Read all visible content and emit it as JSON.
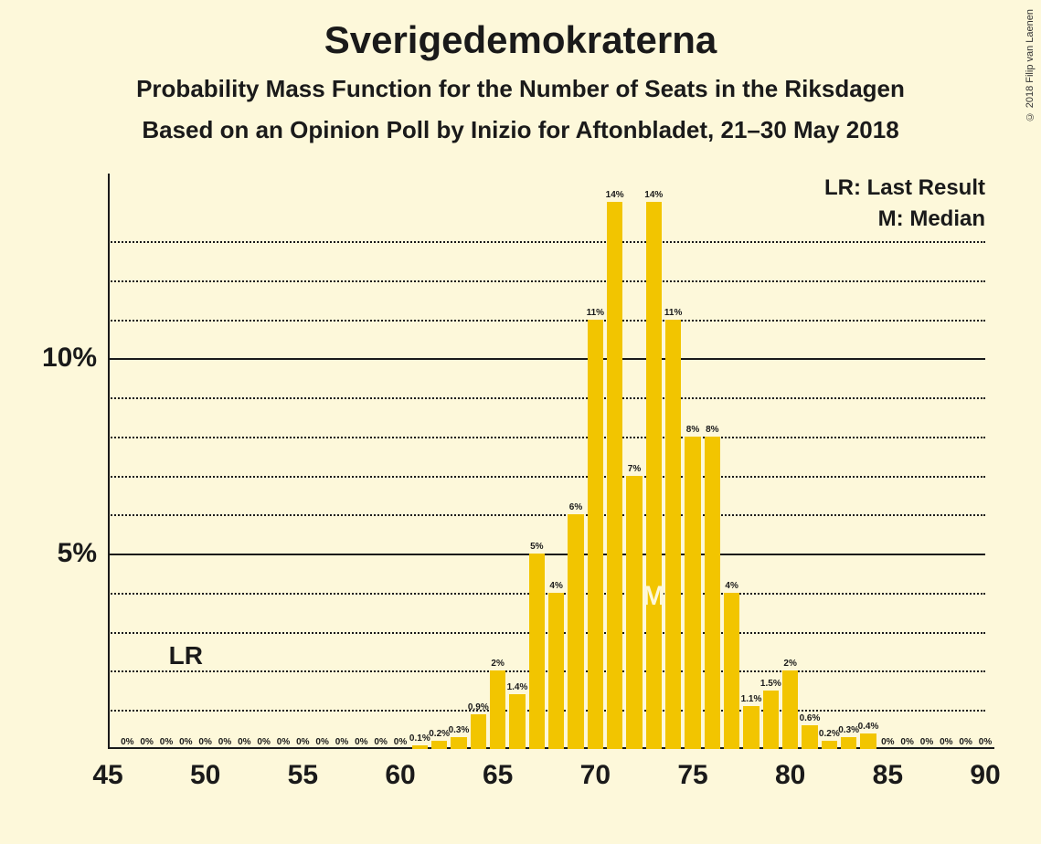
{
  "title": "Sverigedemokraterna",
  "subtitle1": "Probability Mass Function for the Number of Seats in the Riksdagen",
  "subtitle2": "Based on an Opinion Poll by Inizio for Aftonbladet, 21–30 May 2018",
  "copyright": "© 2018 Filip van Laenen",
  "legend": {
    "lr": "LR: Last Result",
    "m": "M: Median"
  },
  "chart": {
    "type": "bar",
    "background_color": "#fdf8da",
    "bar_color": "#f2c500",
    "axis_color": "#1a1a1a",
    "grid_major_color": "#1a1a1a",
    "grid_minor_style": "dotted",
    "title_fontsize": 42,
    "subtitle_fontsize": 26,
    "axis_label_fontsize": 30,
    "bar_label_fontsize": 10,
    "legend_fontsize": 24,
    "xlim": [
      45,
      90
    ],
    "ylim": [
      0,
      14.5
    ],
    "x_ticks_major": [
      45,
      50,
      55,
      60,
      65,
      70,
      75,
      80,
      85,
      90
    ],
    "y_ticks_major": [
      5,
      10
    ],
    "y_ticks_minor": [
      1,
      2,
      3,
      4,
      6,
      7,
      8,
      9,
      11,
      12,
      13
    ],
    "y_tick_labels": {
      "5": "5%",
      "10": "10%"
    },
    "bar_width_ratio": 0.82,
    "lr_position": 49,
    "median_position": 73,
    "m_mark_color": "#fdf8da",
    "data": [
      {
        "x": 46,
        "y": 0,
        "label": "0%"
      },
      {
        "x": 47,
        "y": 0,
        "label": "0%"
      },
      {
        "x": 48,
        "y": 0,
        "label": "0%"
      },
      {
        "x": 49,
        "y": 0,
        "label": "0%"
      },
      {
        "x": 50,
        "y": 0,
        "label": "0%"
      },
      {
        "x": 51,
        "y": 0,
        "label": "0%"
      },
      {
        "x": 52,
        "y": 0,
        "label": "0%"
      },
      {
        "x": 53,
        "y": 0,
        "label": "0%"
      },
      {
        "x": 54,
        "y": 0,
        "label": "0%"
      },
      {
        "x": 55,
        "y": 0,
        "label": "0%"
      },
      {
        "x": 56,
        "y": 0,
        "label": "0%"
      },
      {
        "x": 57,
        "y": 0,
        "label": "0%"
      },
      {
        "x": 58,
        "y": 0,
        "label": "0%"
      },
      {
        "x": 59,
        "y": 0,
        "label": "0%"
      },
      {
        "x": 60,
        "y": 0,
        "label": "0%"
      },
      {
        "x": 61,
        "y": 0.1,
        "label": "0.1%"
      },
      {
        "x": 62,
        "y": 0.2,
        "label": "0.2%"
      },
      {
        "x": 63,
        "y": 0.3,
        "label": "0.3%"
      },
      {
        "x": 64,
        "y": 0.9,
        "label": "0.9%"
      },
      {
        "x": 65,
        "y": 2,
        "label": "2%"
      },
      {
        "x": 66,
        "y": 1.4,
        "label": "1.4%"
      },
      {
        "x": 67,
        "y": 5,
        "label": "5%"
      },
      {
        "x": 68,
        "y": 4,
        "label": "4%"
      },
      {
        "x": 69,
        "y": 6,
        "label": "6%"
      },
      {
        "x": 70,
        "y": 11,
        "label": "11%"
      },
      {
        "x": 71,
        "y": 14,
        "label": "14%"
      },
      {
        "x": 72,
        "y": 7,
        "label": "7%"
      },
      {
        "x": 73,
        "y": 14,
        "label": "14%"
      },
      {
        "x": 74,
        "y": 11,
        "label": "11%"
      },
      {
        "x": 75,
        "y": 8,
        "label": "8%"
      },
      {
        "x": 76,
        "y": 8,
        "label": "8%"
      },
      {
        "x": 77,
        "y": 4,
        "label": "4%"
      },
      {
        "x": 78,
        "y": 1.1,
        "label": "1.1%"
      },
      {
        "x": 79,
        "y": 1.5,
        "label": "1.5%"
      },
      {
        "x": 80,
        "y": 2,
        "label": "2%"
      },
      {
        "x": 81,
        "y": 0.6,
        "label": "0.6%"
      },
      {
        "x": 82,
        "y": 0.2,
        "label": "0.2%"
      },
      {
        "x": 83,
        "y": 0.3,
        "label": "0.3%"
      },
      {
        "x": 84,
        "y": 0.4,
        "label": "0.4%"
      },
      {
        "x": 85,
        "y": 0,
        "label": "0%"
      },
      {
        "x": 86,
        "y": 0,
        "label": "0%"
      },
      {
        "x": 87,
        "y": 0,
        "label": "0%"
      },
      {
        "x": 88,
        "y": 0,
        "label": "0%"
      },
      {
        "x": 89,
        "y": 0,
        "label": "0%"
      },
      {
        "x": 90,
        "y": 0,
        "label": "0%"
      }
    ]
  }
}
